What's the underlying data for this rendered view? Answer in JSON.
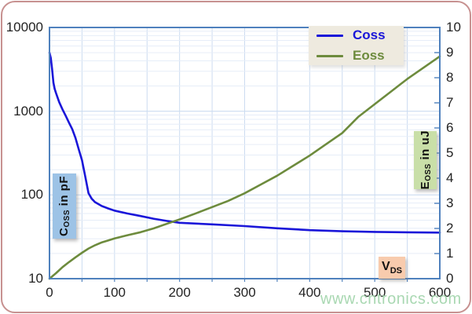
{
  "frame": {
    "border_color": "#c79190"
  },
  "watermark": {
    "text": "www.cntronics.com",
    "color": "#a0d4aa"
  },
  "legend": {
    "bg": "#eeeadf",
    "items": [
      {
        "label": "Coss",
        "color": "#1a16d9"
      },
      {
        "label": "Eoss",
        "color": "#6d8b3d"
      }
    ]
  },
  "axis_boxes": {
    "left": {
      "main": "C",
      "sub": "OSS",
      "rest": " in pF",
      "bg": "#9dc3e6"
    },
    "right": {
      "main": "E",
      "sub": "OSS",
      "rest": " in uJ",
      "bg": "#c9dfa8"
    },
    "x": {
      "main": "V",
      "sub": "DS",
      "rest": "",
      "bg": "#f8cbad"
    }
  },
  "chart_data": {
    "type": "line",
    "title": "",
    "xlabel": "VDS",
    "x_axis": {
      "min": 0,
      "max": 600,
      "ticks": [
        0,
        100,
        200,
        300,
        400,
        500,
        600
      ],
      "grid_step": 50
    },
    "left_axis": {
      "label": "Coss in pF",
      "scale": "log",
      "min": 10,
      "max": 10000,
      "ticks": [
        10000,
        1000,
        100,
        10
      ]
    },
    "right_axis": {
      "label": "Eoss in uJ",
      "scale": "linear",
      "min": 0,
      "max": 10,
      "ticks": [
        10,
        9,
        8,
        7,
        6,
        5,
        4,
        3,
        2,
        1,
        0
      ]
    },
    "grid": {
      "minor_color": "#e6edf8",
      "major_color": "#ccdcf1",
      "spine_color": "#4f81bd"
    },
    "series": [
      {
        "name": "Coss",
        "axis": "left",
        "color": "#1a16d9",
        "units": "pF",
        "points": [
          [
            0,
            5000
          ],
          [
            2,
            4300
          ],
          [
            4,
            3200
          ],
          [
            6,
            2200
          ],
          [
            8,
            1850
          ],
          [
            10,
            1650
          ],
          [
            15,
            1280
          ],
          [
            20,
            1050
          ],
          [
            25,
            880
          ],
          [
            30,
            730
          ],
          [
            35,
            610
          ],
          [
            40,
            480
          ],
          [
            45,
            350
          ],
          [
            50,
            260
          ],
          [
            55,
            165
          ],
          [
            60,
            105
          ],
          [
            65,
            90
          ],
          [
            70,
            82
          ],
          [
            80,
            74
          ],
          [
            90,
            69
          ],
          [
            100,
            65
          ],
          [
            120,
            60
          ],
          [
            140,
            56
          ],
          [
            160,
            52
          ],
          [
            180,
            49
          ],
          [
            200,
            46.5
          ],
          [
            250,
            44.5
          ],
          [
            300,
            42.5
          ],
          [
            350,
            40
          ],
          [
            400,
            38
          ],
          [
            450,
            36.8
          ],
          [
            500,
            36.2
          ],
          [
            550,
            35.8
          ],
          [
            600,
            35.5
          ]
        ]
      },
      {
        "name": "Eoss",
        "axis": "right",
        "color": "#6d8b3d",
        "units": "uJ",
        "points": [
          [
            0,
            0
          ],
          [
            10,
            0.22
          ],
          [
            20,
            0.46
          ],
          [
            30,
            0.66
          ],
          [
            40,
            0.85
          ],
          [
            50,
            1.03
          ],
          [
            60,
            1.2
          ],
          [
            70,
            1.33
          ],
          [
            80,
            1.44
          ],
          [
            90,
            1.52
          ],
          [
            100,
            1.6
          ],
          [
            120,
            1.73
          ],
          [
            140,
            1.85
          ],
          [
            160,
            2.0
          ],
          [
            180,
            2.18
          ],
          [
            200,
            2.36
          ],
          [
            225,
            2.6
          ],
          [
            250,
            2.85
          ],
          [
            275,
            3.1
          ],
          [
            300,
            3.4
          ],
          [
            325,
            3.75
          ],
          [
            350,
            4.1
          ],
          [
            375,
            4.5
          ],
          [
            400,
            4.9
          ],
          [
            425,
            5.35
          ],
          [
            450,
            5.8
          ],
          [
            475,
            6.45
          ],
          [
            500,
            6.95
          ],
          [
            525,
            7.45
          ],
          [
            550,
            7.95
          ],
          [
            575,
            8.4
          ],
          [
            600,
            8.85
          ]
        ]
      }
    ]
  }
}
